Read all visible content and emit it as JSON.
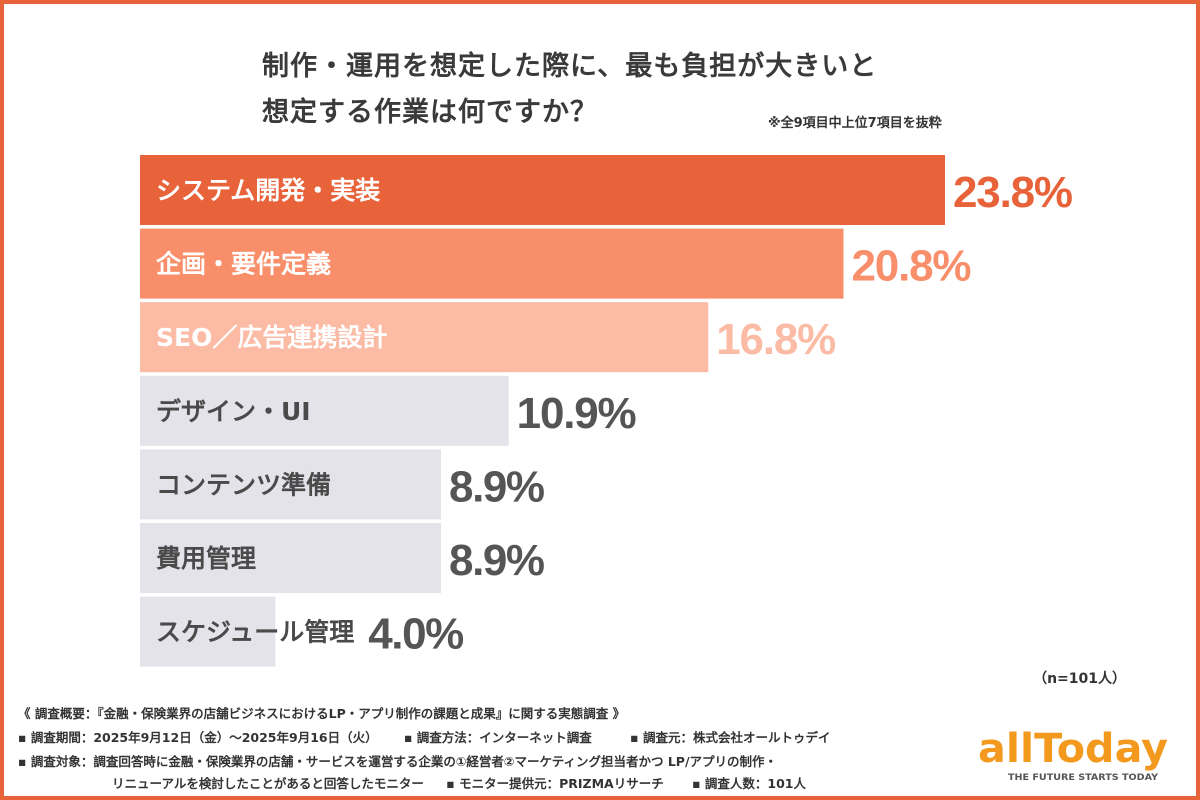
{
  "title_lines": [
    "制作・運用を想定した際に、最も負担が大きいと",
    "想定する作業は何ですか？"
  ],
  "note": "※全9項目中上位7項目を抜粋",
  "sample": "（n=101人）",
  "colors": {
    "frame": "#e8623a",
    "top1": "#e8623a",
    "top2": "#f98e6a",
    "top3": "#fbbba4",
    "other": "#e3e3e9",
    "other_value": "#555555"
  },
  "chart_data": {
    "type": "bar",
    "orientation": "horizontal",
    "categories": [
      "システム開発・実装",
      "企画・要件定義",
      "SEO／広告連携設計",
      "デザイン・UI",
      "コンテンツ準備",
      "費用管理",
      "スケジュール管理"
    ],
    "values": [
      23.8,
      20.8,
      16.8,
      10.9,
      8.9,
      8.9,
      4.0
    ],
    "value_labels": [
      "23.8%",
      "20.8%",
      "16.8%",
      "10.9%",
      "8.9%",
      "8.9%",
      "4.0%"
    ],
    "unit": "%",
    "xlim": [
      0,
      23.8
    ],
    "grid": false
  },
  "footer": {
    "line1": "《 調査概要：『金融・保険業界の店舗ビジネスにおけるLP・アプリ制作の課題と成果』に関する実態調査 》",
    "period": "▪ 調査期間：2025年9月12日（金）〜2025年9月16日（火）",
    "method": "▪ 調査方法：インターネット調査",
    "source": "▪ 調査元：株式会社オールトゥデイ",
    "target": "▪ 調査対象：調査回答時に金融・保険業界の店舗・サービスを運営する企業の①経営者②マーケティング担当者かつ LP/アプリの制作・",
    "target2": "リニューアルを検討したことがあると回答したモニター",
    "provider": "▪ モニター提供元：PRIZMAリサーチ",
    "count": "▪ 調査人数：101人"
  },
  "logo": {
    "word": "allToday",
    "tagline": "THE FUTURE STARTS TODAY"
  }
}
